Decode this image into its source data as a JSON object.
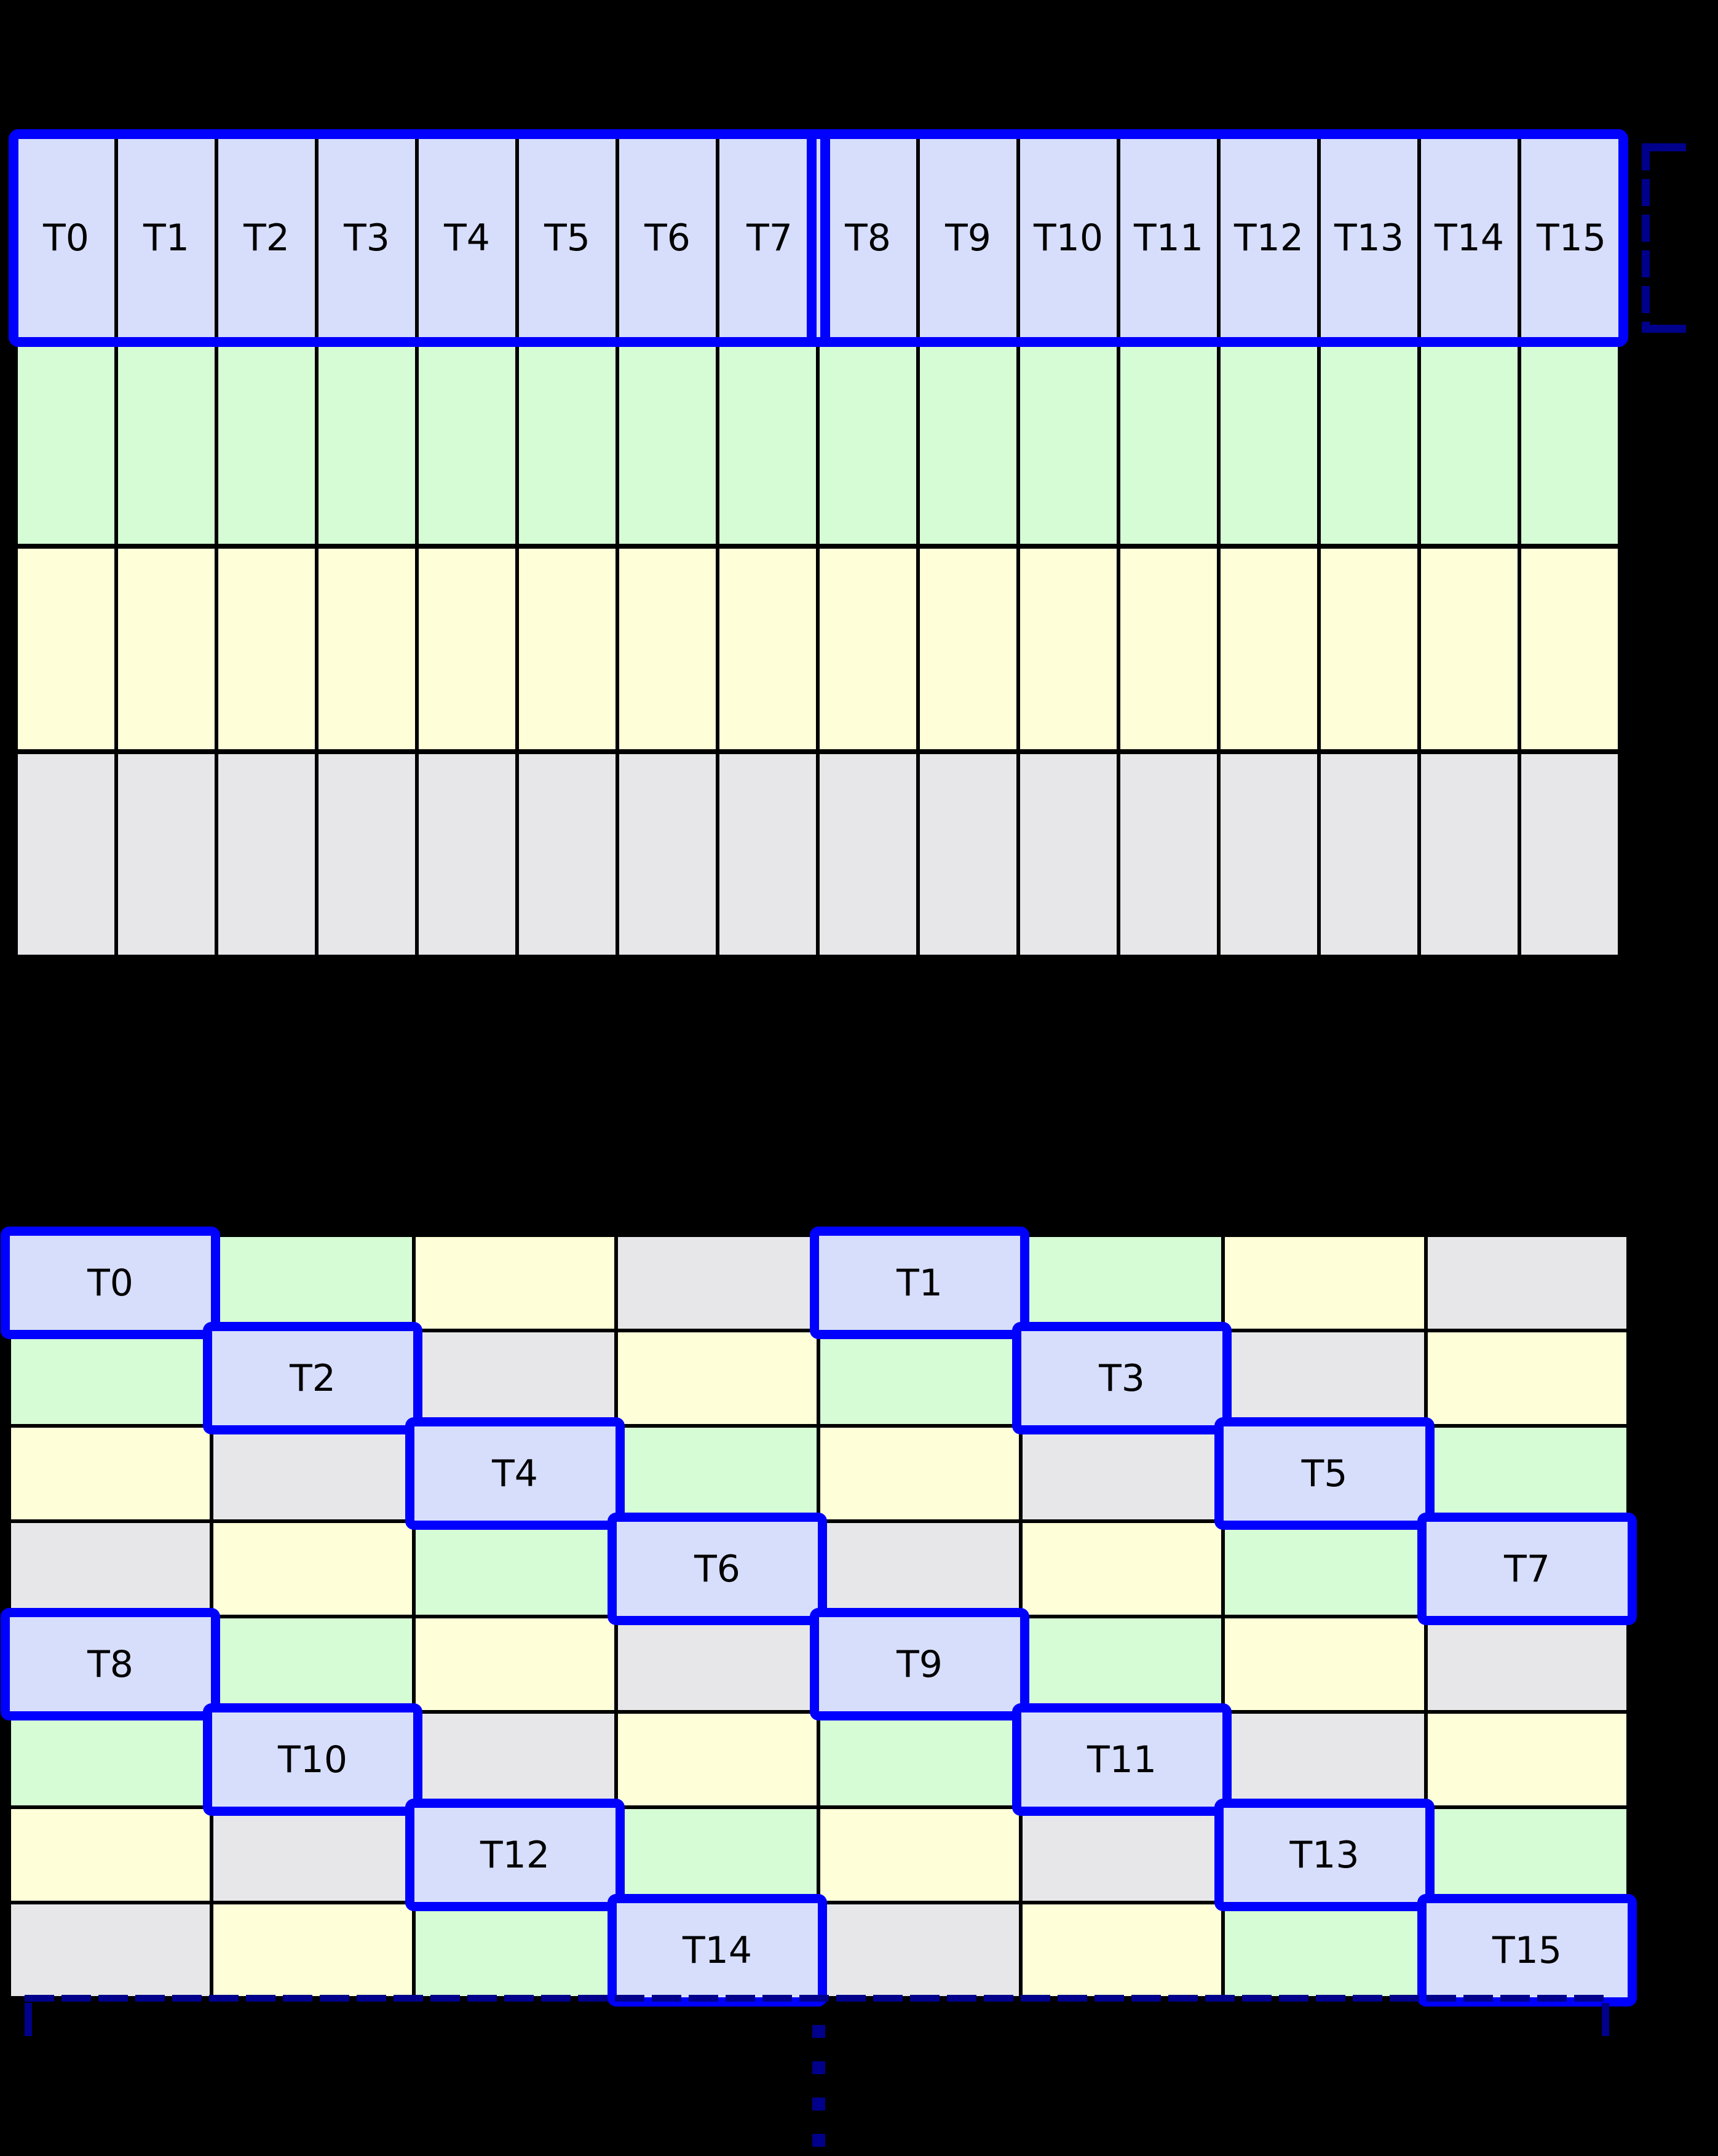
{
  "colors": {
    "background": "#000000",
    "grid_line": "#000000",
    "highlight_border": "#0000FF",
    "annotation_navy": "#00008B",
    "cell_blue": "#D7DEFB",
    "cell_green": "#D6FCD6",
    "cell_yellow": "#FEFED8",
    "cell_gray": "#E7E7E9",
    "label_text": "#000000"
  },
  "palette_order": [
    "blue",
    "green",
    "yellow",
    "gray"
  ],
  "table1": {
    "columns": 16,
    "rows": 4,
    "thread_labels": [
      "T0",
      "T1",
      "T2",
      "T3",
      "T4",
      "T5",
      "T6",
      "T7",
      "T8",
      "T9",
      "T10",
      "T11",
      "T12",
      "T13",
      "T14",
      "T15"
    ],
    "first_row_fill": "blue",
    "lower_row_fills": [
      "green",
      "yellow",
      "gray"
    ],
    "highlight_groups": [
      {
        "label_range": "T0-T7",
        "cols_start": 0,
        "cols_end": 7
      },
      {
        "label_range": "T8-T15",
        "cols_start": 8,
        "cols_end": 15
      }
    ]
  },
  "table2": {
    "columns": 8,
    "rows": 8,
    "cell_color_indices": [
      [
        0,
        1,
        2,
        3,
        0,
        1,
        2,
        3
      ],
      [
        1,
        0,
        3,
        2,
        1,
        0,
        3,
        2
      ],
      [
        2,
        3,
        0,
        1,
        2,
        3,
        0,
        1
      ],
      [
        3,
        2,
        1,
        0,
        3,
        2,
        1,
        0
      ],
      [
        0,
        1,
        2,
        3,
        0,
        1,
        2,
        3
      ],
      [
        1,
        0,
        3,
        2,
        1,
        0,
        3,
        2
      ],
      [
        2,
        3,
        0,
        1,
        2,
        3,
        0,
        1
      ],
      [
        3,
        2,
        1,
        0,
        3,
        2,
        1,
        0
      ]
    ],
    "thread_cells": [
      {
        "row": 0,
        "col": 0,
        "label": "T0"
      },
      {
        "row": 0,
        "col": 4,
        "label": "T1"
      },
      {
        "row": 1,
        "col": 1,
        "label": "T2"
      },
      {
        "row": 1,
        "col": 5,
        "label": "T3"
      },
      {
        "row": 2,
        "col": 2,
        "label": "T4"
      },
      {
        "row": 2,
        "col": 6,
        "label": "T5"
      },
      {
        "row": 3,
        "col": 3,
        "label": "T6"
      },
      {
        "row": 3,
        "col": 7,
        "label": "T7"
      },
      {
        "row": 4,
        "col": 0,
        "label": "T8"
      },
      {
        "row": 4,
        "col": 4,
        "label": "T9"
      },
      {
        "row": 5,
        "col": 1,
        "label": "T10"
      },
      {
        "row": 5,
        "col": 5,
        "label": "T11"
      },
      {
        "row": 6,
        "col": 2,
        "label": "T12"
      },
      {
        "row": 6,
        "col": 6,
        "label": "T13"
      },
      {
        "row": 7,
        "col": 3,
        "label": "T14"
      },
      {
        "row": 7,
        "col": 7,
        "label": "T15"
      }
    ]
  },
  "annotations": {
    "row_height_bracket_icon": "dashed-bracket",
    "width_extent_icon": "dashed-dimension-line",
    "continuation_icon": "vertical-ellipsis",
    "ellipsis_dot_count": 4
  }
}
